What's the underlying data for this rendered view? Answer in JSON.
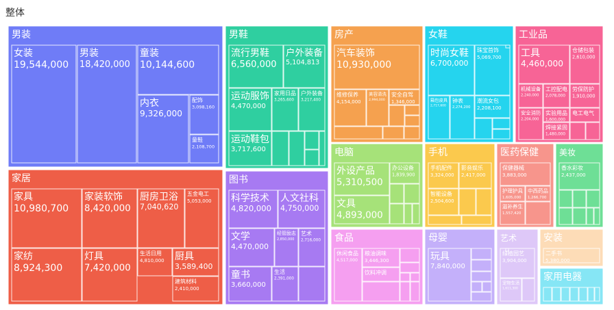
{
  "title": "整体",
  "chart_data": {
    "type": "treemap",
    "title": "整体",
    "groups": [
      {
        "name": "男装",
        "color": "#6f7cf7",
        "items": [
          {
            "name": "女装",
            "value": 19544000
          },
          {
            "name": "男装",
            "value": 18420000
          },
          {
            "name": "童装",
            "value": 10144600
          },
          {
            "name": "内衣",
            "value": 9326000
          },
          {
            "name": "配饰",
            "value": 3098160
          },
          {
            "name": "童鞋",
            "value": 2108700
          }
        ]
      },
      {
        "name": "男鞋",
        "color": "#2fcfa0",
        "items": [
          {
            "name": "流行男鞋",
            "value": 6560000
          },
          {
            "name": "户外装备",
            "value": 5104813
          },
          {
            "name": "运动服饰",
            "value": 4470000
          },
          {
            "name": "家用日品",
            "value": 3265600
          },
          {
            "name": "户外装备",
            "value": 3217400
          },
          {
            "name": "运动鞋包",
            "value": 3717600
          },
          {
            "name": "",
            "value": 1600000
          },
          {
            "name": "",
            "value": 1500000
          },
          {
            "name": "",
            "value": 1400000
          },
          {
            "name": "",
            "value": 1300000
          },
          {
            "name": "",
            "value": 1200000
          }
        ]
      },
      {
        "name": "房产",
        "color": "#f5a14f",
        "items": [
          {
            "name": "汽车装饰",
            "value": 10930000
          },
          {
            "name": "维修保养",
            "value": 4154000
          },
          {
            "name": "美容清洗",
            "value": 2994000
          },
          {
            "name": "安全自驾",
            "value": 1346000
          },
          {
            "name": "",
            "value": 800000
          },
          {
            "name": "",
            "value": 700000
          },
          {
            "name": "",
            "value": 650000
          },
          {
            "name": "",
            "value": 600000
          },
          {
            "name": "",
            "value": 500000
          },
          {
            "name": "",
            "value": 450000
          }
        ]
      },
      {
        "name": "女鞋",
        "color": "#25d4ee",
        "items": [
          {
            "name": "时尚女鞋",
            "value": 6700000
          },
          {
            "name": "珠宝首饰",
            "value": 5069700
          },
          {
            "name": "箱包皮具",
            "value": 2717600
          },
          {
            "name": "钟表",
            "value": 2274200
          },
          {
            "name": "潮流女包",
            "value": 2208100
          },
          {
            "name": "",
            "value": 1500000
          },
          {
            "name": "",
            "value": 1400000
          },
          {
            "name": "",
            "value": 1200000
          },
          {
            "name": "",
            "value": 1000000
          }
        ]
      },
      {
        "name": "工业品",
        "color": "#f76496",
        "items": [
          {
            "name": "工具",
            "value": 4460000
          },
          {
            "name": "仓储包装",
            "value": 2610000
          },
          {
            "name": "机械设备",
            "value": 2240000
          },
          {
            "name": "工控配电",
            "value": 2078000
          },
          {
            "name": "劳保防护",
            "value": 1910000
          },
          {
            "name": "实验用品",
            "value": 1600000
          },
          {
            "name": "电工电气",
            "value": 1060000
          },
          {
            "name": "安全消防",
            "value": 2204000
          },
          {
            "name": "焊接紧固",
            "value": 1480000
          },
          {
            "name": "",
            "value": 700000
          },
          {
            "name": "",
            "value": 600000
          }
        ]
      },
      {
        "name": "电脑",
        "color": "#a6e279",
        "items": [
          {
            "name": "外设产品",
            "value": 5310500
          },
          {
            "name": "文具",
            "value": 4893000
          },
          {
            "name": "办公设备",
            "value": 1839900
          },
          {
            "name": "",
            "value": 1300000
          },
          {
            "name": "",
            "value": 1100000
          },
          {
            "name": "",
            "value": 900000
          },
          {
            "name": "",
            "value": 800000
          },
          {
            "name": "",
            "value": 700000
          }
        ]
      },
      {
        "name": "手机",
        "color": "#fbc94d",
        "items": [
          {
            "name": "手机配件",
            "value": 3324000
          },
          {
            "name": "影音娱乐",
            "value": 2417000
          },
          {
            "name": "智能设备",
            "value": 2504600
          },
          {
            "name": "",
            "value": 1000000
          },
          {
            "name": "",
            "value": 900000
          },
          {
            "name": "",
            "value": 700000
          },
          {
            "name": "",
            "value": 500000
          }
        ]
      },
      {
        "name": "医药保健",
        "color": "#f7958c",
        "items": [
          {
            "name": "保健器械",
            "value": 3883000
          },
          {
            "name": "护理护具",
            "value": 1605000
          },
          {
            "name": "中西药品",
            "value": 1266700
          },
          {
            "name": "滋补养生",
            "value": 1557420
          },
          {
            "name": "",
            "value": 700000
          }
        ]
      },
      {
        "name": "美妆",
        "color": "#6edf96",
        "items": [
          {
            "name": "香水彩妆",
            "value": 2437000
          },
          {
            "name": "",
            "value": 1000000
          },
          {
            "name": "",
            "value": 950000
          },
          {
            "name": "",
            "value": 900000
          },
          {
            "name": "",
            "value": 850000
          },
          {
            "name": "",
            "value": 800000
          },
          {
            "name": "",
            "value": 700000
          },
          {
            "name": "",
            "value": 650000
          }
        ]
      },
      {
        "name": "图书",
        "color": "#a77af2",
        "items": [
          {
            "name": "科学技术",
            "value": 4820000
          },
          {
            "name": "人文社科",
            "value": 4750000
          },
          {
            "name": "文学",
            "value": 4470000
          },
          {
            "name": "经管励志",
            "value": 2850000
          },
          {
            "name": "艺术",
            "value": 2716000
          },
          {
            "name": "童书",
            "value": 3660000
          },
          {
            "name": "生活",
            "value": 2391000
          },
          {
            "name": "",
            "value": 800000
          }
        ]
      },
      {
        "name": "食品",
        "color": "#f59ff0",
        "items": [
          {
            "name": "休闲食品",
            "value": 4517000
          },
          {
            "name": "粮油调味",
            "value": 3446300
          },
          {
            "name": "饮料冲调",
            "value": 2395000
          },
          {
            "name": "",
            "value": 700000
          },
          {
            "name": "",
            "value": 600000
          },
          {
            "name": "",
            "value": 500000
          },
          {
            "name": "",
            "value": 450000
          },
          {
            "name": "",
            "value": 400000
          },
          {
            "name": "",
            "value": 350000
          },
          {
            "name": "",
            "value": 300000
          }
        ]
      },
      {
        "name": "母婴",
        "color": "#c4b0fa",
        "items": [
          {
            "name": "玩具",
            "value": 7840000
          },
          {
            "name": "",
            "value": 900000
          },
          {
            "name": "",
            "value": 800000
          },
          {
            "name": "",
            "value": 700000
          },
          {
            "name": "",
            "value": 600000
          },
          {
            "name": "",
            "value": 500000
          },
          {
            "name": "",
            "value": 400000
          }
        ]
      },
      {
        "name": "艺术",
        "color": "#dec8f8",
        "items": [
          {
            "name": "绿植园艺",
            "value": 3904000
          },
          {
            "name": "宠物生活",
            "value": 1611300
          },
          {
            "name": "",
            "value": 700000
          },
          {
            "name": "",
            "value": 500000
          }
        ]
      },
      {
        "name": "安装",
        "color": "#fddcb7",
        "items": [
          {
            "name": "二手书",
            "value": 5380000
          }
        ]
      },
      {
        "name": "家用电器",
        "color": "#86e6f5",
        "items": [
          {
            "name": "",
            "value": 600000
          },
          {
            "name": "",
            "value": 500000
          },
          {
            "name": "",
            "value": 450000
          },
          {
            "name": "",
            "value": 400000
          },
          {
            "name": "",
            "value": 350000
          },
          {
            "name": "",
            "value": 300000
          },
          {
            "name": "",
            "value": 250000
          }
        ]
      },
      {
        "name": "家居",
        "color": "#ee5e47",
        "items": [
          {
            "name": "家具",
            "value": 10980700
          },
          {
            "name": "家装软饰",
            "value": 8420000
          },
          {
            "name": "厨房卫浴",
            "value": 7040620
          },
          {
            "name": "五金电工",
            "value": 5053000
          },
          {
            "name": "家纺",
            "value": 8924300
          },
          {
            "name": "灯具",
            "value": 7420000
          },
          {
            "name": "生活日用",
            "value": 4810000
          },
          {
            "name": "厨具",
            "value": 3589400
          },
          {
            "name": "建筑材料",
            "value": 2410000
          }
        ]
      }
    ]
  }
}
